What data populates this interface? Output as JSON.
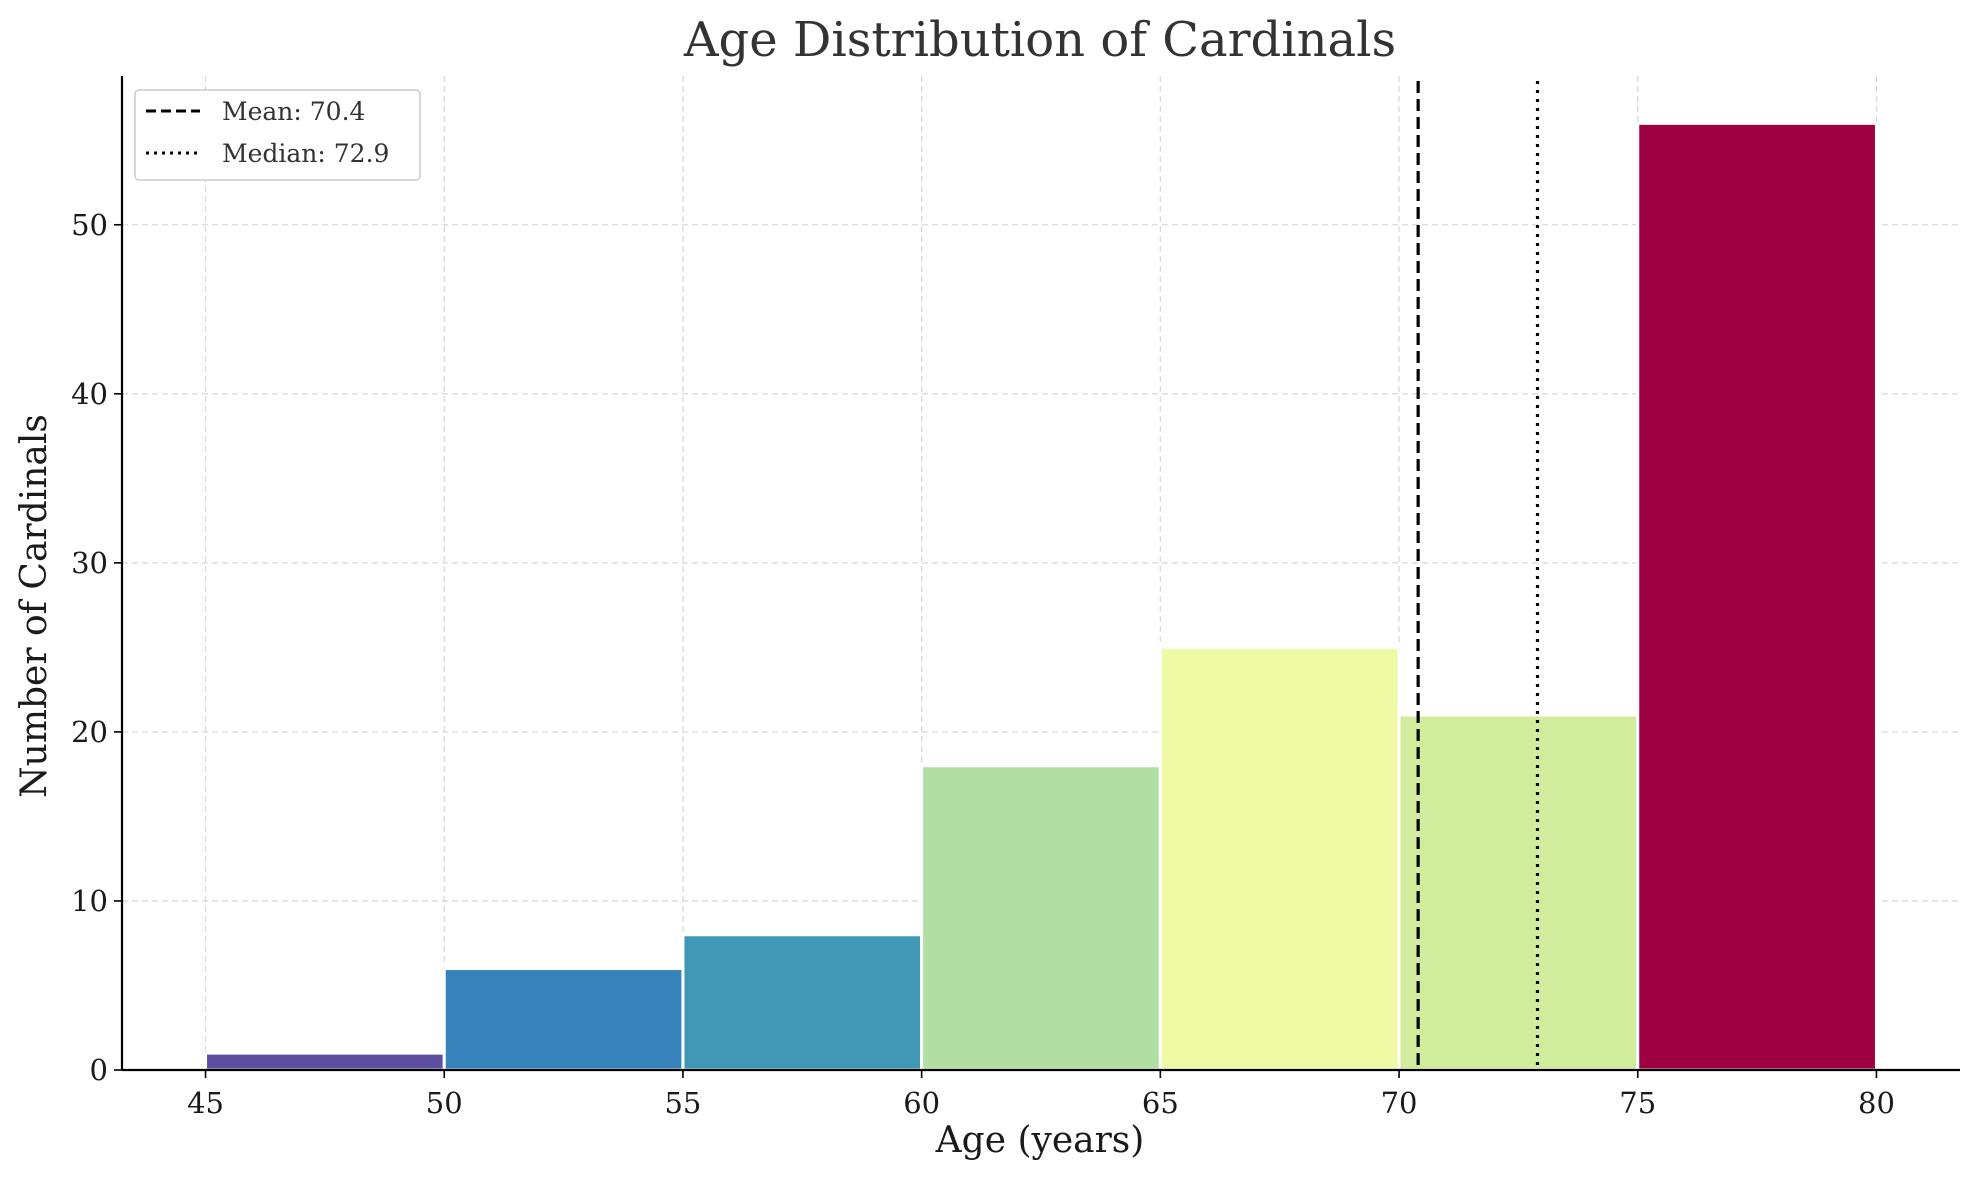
{
  "chart_data": {
    "type": "bar",
    "title": "Age Distribution of Cardinals",
    "xlabel": "Age (years)",
    "ylabel": "Number of Cardinals",
    "bins": [
      [
        45,
        50
      ],
      [
        50,
        55
      ],
      [
        55,
        60
      ],
      [
        60,
        65
      ],
      [
        65,
        70
      ],
      [
        70,
        75
      ],
      [
        75,
        80
      ]
    ],
    "values": [
      1,
      6,
      8,
      18,
      25,
      21,
      56
    ],
    "colors": [
      "#5e4fa2",
      "#3682ba",
      "#4198b6",
      "#b1dfa3",
      "#effaa4",
      "#d1ec9c",
      "#9e0142"
    ],
    "xlim": [
      43.25,
      81.75
    ],
    "ylim": [
      0,
      58.8
    ],
    "xticks": [
      45,
      50,
      55,
      60,
      65,
      70,
      75,
      80
    ],
    "yticks": [
      0,
      10,
      20,
      30,
      40,
      50
    ],
    "grid": true,
    "reference_lines": [
      {
        "label": "Mean: 70.4",
        "value": 70.4,
        "style": "dashed"
      },
      {
        "label": "Median: 72.9",
        "value": 72.9,
        "style": "dotted"
      }
    ],
    "legend": {
      "position": "top-left"
    }
  }
}
